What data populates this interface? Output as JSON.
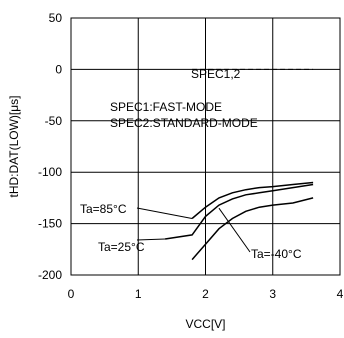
{
  "chart_data": {
    "type": "line",
    "xlabel": "VCC[V]",
    "ylabel": "tHD:DAT(LOW)[μs]",
    "xlim": [
      0,
      4
    ],
    "ylim": [
      -200,
      50
    ],
    "x_ticks": [
      "0",
      "1",
      "2",
      "3",
      "4"
    ],
    "y_ticks": [
      "50",
      "0",
      "-50",
      "-100",
      "-150",
      "-200"
    ],
    "x_tick_values": [
      0,
      1,
      2,
      3,
      4
    ],
    "y_tick_values": [
      50,
      0,
      -50,
      -100,
      -150,
      -200
    ],
    "grid": true,
    "series": [
      {
        "name": "Ta=85°C",
        "x": [
          1.8,
          2.0,
          2.2,
          2.4,
          2.6,
          2.8,
          3.0,
          3.3,
          3.6
        ],
        "values": [
          -145,
          -134,
          -125,
          -120,
          -117,
          -115,
          -114,
          -112,
          -110
        ]
      },
      {
        "name": "Ta=25°C",
        "x": [
          1.4,
          1.8,
          2.0,
          2.2,
          2.4,
          2.6,
          2.8,
          3.0,
          3.3,
          3.6
        ],
        "values": [
          -165,
          -161,
          -143,
          -132,
          -126,
          -122,
          -120,
          -118,
          -115,
          -112
        ]
      },
      {
        "name": "Ta=-40°C",
        "x": [
          1.8,
          2.0,
          2.2,
          2.4,
          2.6,
          2.8,
          3.0,
          3.3,
          3.6
        ],
        "values": [
          -185,
          -170,
          -155,
          -145,
          -138,
          -134,
          -132,
          -130,
          -125
        ]
      },
      {
        "name": "SPEC1,2",
        "dashed": true,
        "x": [
          1.8,
          3.6
        ],
        "values": [
          0,
          0
        ]
      }
    ],
    "annotations": [
      {
        "text": "SPEC1,2"
      },
      {
        "text": "SPEC1:FAST-MODE"
      },
      {
        "text": "SPEC2:STANDARD-MODE"
      },
      {
        "text": "Ta=85°C"
      },
      {
        "text": "Ta=25°C"
      },
      {
        "text": "Ta=-40°C"
      }
    ]
  }
}
